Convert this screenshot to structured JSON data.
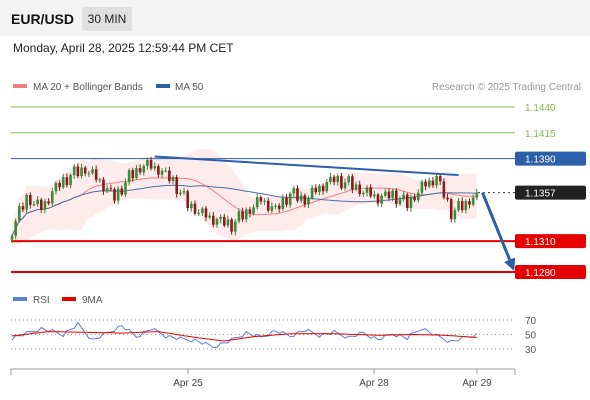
{
  "header": {
    "pair": "EUR/USD",
    "timeframe": "30 MIN"
  },
  "date_line": "Monday, April 28, 2025 12:59:44 PM CET",
  "legend": {
    "ma20": "MA 20 + Bollinger Bands",
    "ma50": "MA 50"
  },
  "rsi_legend": {
    "rsi": "RSI",
    "ma9": "9MA"
  },
  "watermark": "Research © 2025 Trading Central",
  "colors": {
    "green_level": "#7cc24a",
    "blue_level": "#2b5faa",
    "red_level": "#e60000",
    "ma20": "#f08080",
    "ma50": "#4a6fa5",
    "band": "#fde2e2",
    "candle_up": "#3a8a3a",
    "candle_down": "#8b1a1a",
    "rsi": "#5a7fd6",
    "rsi_ma": "#e60000"
  },
  "chart_data": [
    {
      "type": "candlestick",
      "title": "EUR/USD",
      "y_range": [
        1.1252,
        1.1452
      ],
      "x_tick_labels": [
        "Apr 25",
        "Apr 28",
        "Apr 29"
      ],
      "levels": [
        {
          "value": 1.144,
          "label": "1.1440",
          "kind": "resistance-2"
        },
        {
          "value": 1.1415,
          "label": "1.1415",
          "kind": "resistance-1"
        },
        {
          "value": 1.139,
          "label": "1.1390",
          "kind": "pivot"
        },
        {
          "value": 1.1357,
          "label": "1.1357",
          "kind": "last"
        },
        {
          "value": 1.131,
          "label": "1.1310",
          "kind": "support-1"
        },
        {
          "value": 1.128,
          "label": "1.1280",
          "kind": "support-2"
        }
      ],
      "series": [
        {
          "name": "MA 20 + Bollinger Bands",
          "color": "#f08080"
        },
        {
          "name": "MA 50",
          "color": "#4a6fa5"
        }
      ],
      "anchors": [
        [
          0,
          1.1322
        ],
        [
          4,
          1.1352
        ],
        [
          8,
          1.1342
        ],
        [
          12,
          1.1362
        ],
        [
          16,
          1.1374
        ],
        [
          20,
          1.138
        ],
        [
          24,
          1.1368
        ],
        [
          28,
          1.1352
        ],
        [
          32,
          1.1372
        ],
        [
          36,
          1.1384
        ],
        [
          40,
          1.138
        ],
        [
          44,
          1.1368
        ],
        [
          48,
          1.1346
        ],
        [
          52,
          1.1336
        ],
        [
          56,
          1.133
        ],
        [
          60,
          1.1326
        ],
        [
          64,
          1.1338
        ],
        [
          68,
          1.135
        ],
        [
          72,
          1.134
        ],
        [
          76,
          1.1356
        ],
        [
          80,
          1.135
        ],
        [
          84,
          1.1362
        ],
        [
          88,
          1.137
        ],
        [
          92,
          1.1366
        ],
        [
          96,
          1.1358
        ],
        [
          100,
          1.1352
        ],
        [
          104,
          1.1355
        ],
        [
          108,
          1.1346
        ],
        [
          112,
          1.1362
        ],
        [
          116,
          1.1372
        ],
        [
          120,
          1.1338
        ],
        [
          124,
          1.1346
        ],
        [
          127,
          1.1357
        ]
      ],
      "candle_count": 128,
      "trendline": [
        [
          39,
          1.1392
        ],
        [
          122,
          1.1374
        ]
      ],
      "projection": [
        [
          128,
          1.1357
        ],
        [
          137,
          1.128
        ]
      ]
    },
    {
      "type": "line",
      "title": "RSI",
      "y_range": [
        20,
        80
      ],
      "y_ticks": [
        70,
        50,
        30
      ],
      "series": [
        {
          "name": "RSI",
          "color": "#5a7fd6",
          "anchors": [
            [
              0,
              45
            ],
            [
              8,
              58
            ],
            [
              14,
              50
            ],
            [
              18,
              64
            ],
            [
              22,
              42
            ],
            [
              26,
              52
            ],
            [
              30,
              62
            ],
            [
              34,
              47
            ],
            [
              38,
              58
            ],
            [
              42,
              48
            ],
            [
              46,
              44
            ],
            [
              50,
              42
            ],
            [
              55,
              33
            ],
            [
              60,
              42
            ],
            [
              64,
              52
            ],
            [
              68,
              46
            ],
            [
              72,
              55
            ],
            [
              76,
              48
            ],
            [
              80,
              56
            ],
            [
              84,
              49
            ],
            [
              88,
              53
            ],
            [
              92,
              46
            ],
            [
              96,
              52
            ],
            [
              100,
              43
            ],
            [
              104,
              51
            ],
            [
              108,
              45
            ],
            [
              112,
              59
            ],
            [
              116,
              48
            ],
            [
              120,
              40
            ],
            [
              124,
              46
            ],
            [
              127,
              50
            ]
          ]
        },
        {
          "name": "9MA",
          "color": "#e60000",
          "anchors": [
            [
              0,
              48
            ],
            [
              10,
              54
            ],
            [
              20,
              53
            ],
            [
              30,
              52
            ],
            [
              40,
              54
            ],
            [
              50,
              46
            ],
            [
              58,
              41
            ],
            [
              66,
              47
            ],
            [
              76,
              51
            ],
            [
              88,
              51
            ],
            [
              100,
              49
            ],
            [
              110,
              50
            ],
            [
              118,
              49
            ],
            [
              127,
              46
            ]
          ]
        }
      ]
    }
  ]
}
